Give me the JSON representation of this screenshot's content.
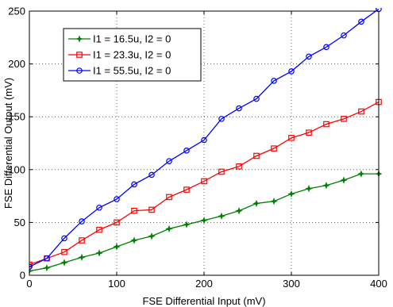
{
  "chart_data": {
    "type": "line",
    "title": "",
    "xlabel": "FSE Differential Input (mV)",
    "ylabel": "FSE Differential Output (mV)",
    "xlim": [
      0,
      400
    ],
    "ylim": [
      0,
      250
    ],
    "xticks": [
      0,
      100,
      200,
      300,
      400
    ],
    "yticks": [
      0,
      50,
      100,
      150,
      200,
      250
    ],
    "grid": true,
    "legend_position": "top-left",
    "x": [
      0,
      20,
      40,
      60,
      80,
      100,
      120,
      140,
      160,
      180,
      200,
      220,
      240,
      260,
      280,
      300,
      320,
      340,
      360,
      380,
      400
    ],
    "series": [
      {
        "name": "I1 = 16.5u, I2 = 0",
        "color": "#008000",
        "marker": "star",
        "values": [
          4,
          7,
          12,
          17,
          21,
          27,
          33,
          37,
          44,
          48,
          52,
          56,
          61,
          68,
          70,
          77,
          82,
          85,
          90,
          96,
          96
        ]
      },
      {
        "name": "I1 = 23.3u, I2 = 0",
        "color": "#ff0000",
        "marker": "square",
        "values": [
          10,
          16,
          22,
          33,
          43,
          50,
          61,
          62,
          74,
          81,
          89,
          98,
          103,
          113,
          120,
          130,
          135,
          143,
          148,
          155,
          164
        ]
      },
      {
        "name": "I1 = 55.5u, I2 = 0",
        "color": "#0000ff",
        "marker": "circle",
        "values": [
          8,
          16,
          35,
          51,
          64,
          72,
          86,
          95,
          108,
          118,
          128,
          148,
          158,
          167,
          184,
          193,
          207,
          216,
          227,
          240,
          252
        ]
      }
    ]
  }
}
